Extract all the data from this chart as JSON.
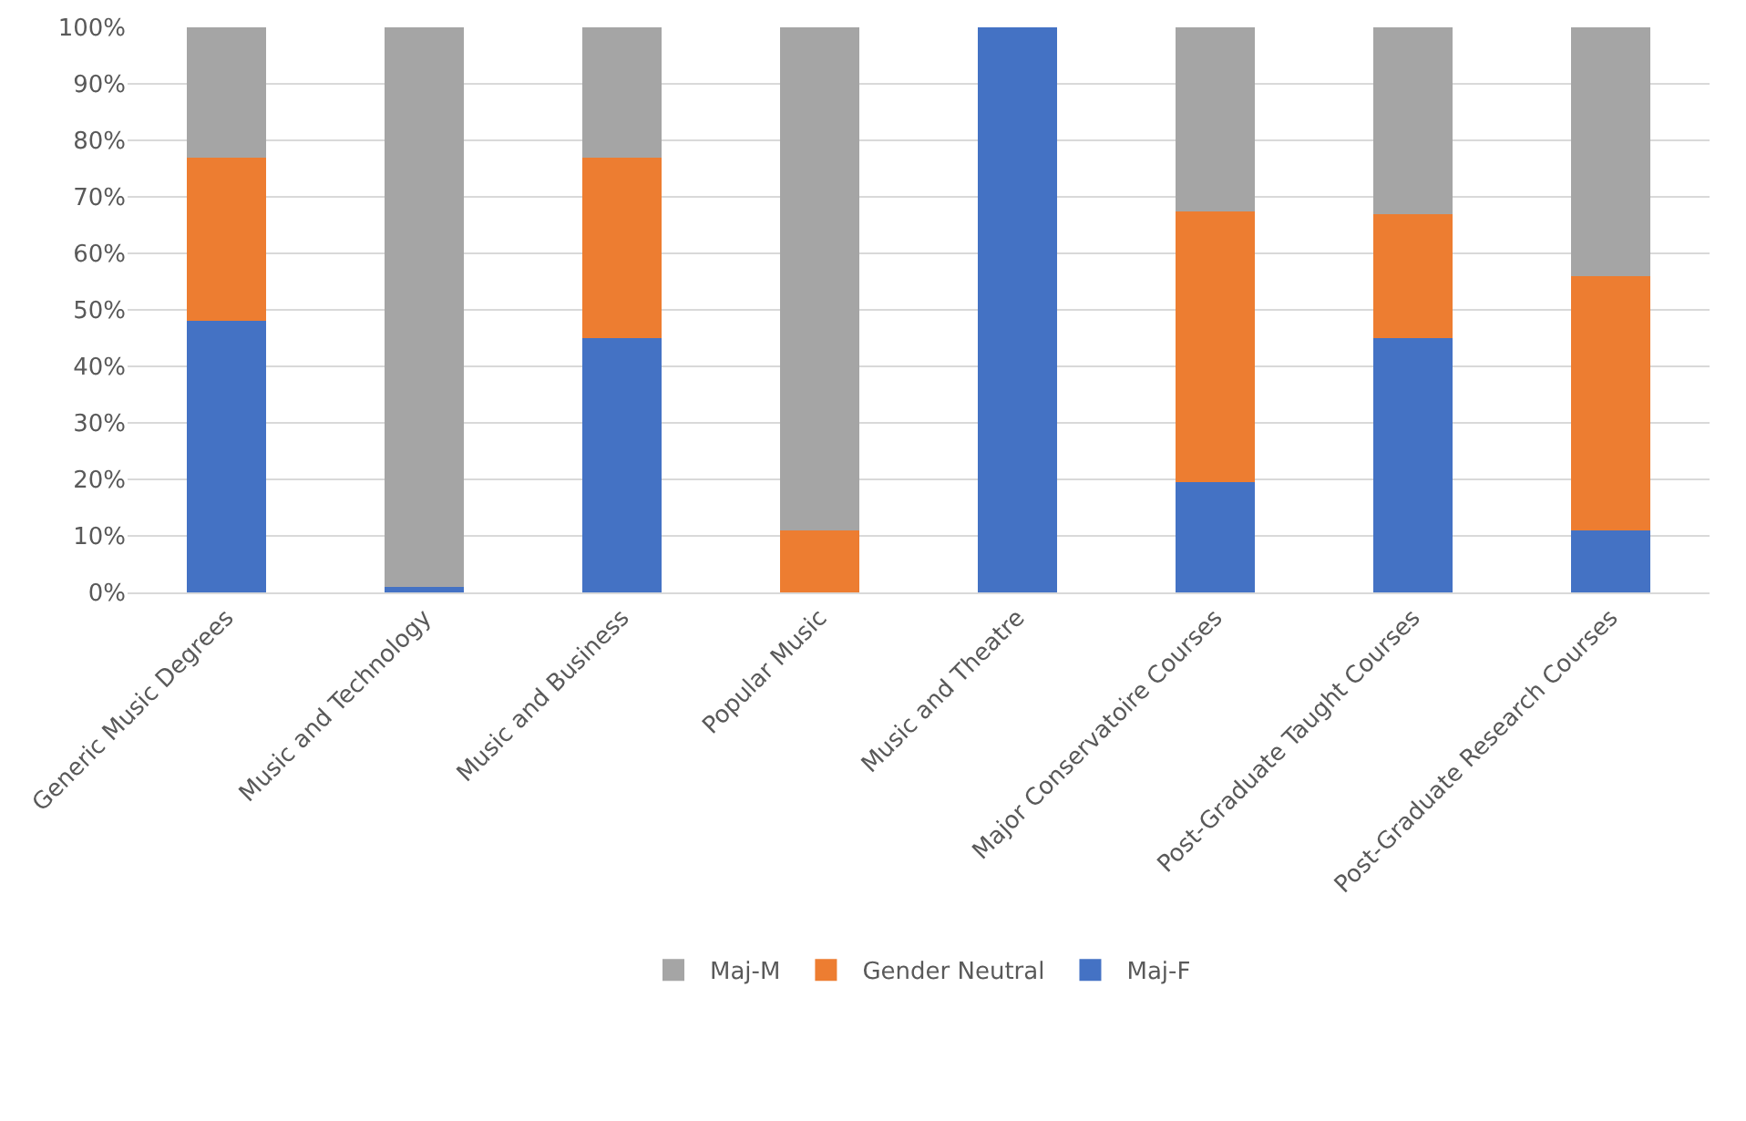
{
  "chart_data": {
    "type": "bar",
    "stacked": true,
    "categories": [
      "Generic Music Degrees",
      "Music and Technology",
      "Music and Business",
      "Popular Music",
      "Music and Theatre",
      "Major Conservatoire Courses",
      "Post-Graduate Taught Courses",
      "Post-Graduate Research Courses"
    ],
    "series": [
      {
        "name": "Maj-F",
        "color": "#4472c4",
        "values": [
          48,
          1,
          45,
          0,
          100,
          19.5,
          45,
          11
        ]
      },
      {
        "name": "Gender Neutral",
        "color": "#ed7d31",
        "values": [
          29,
          0,
          32,
          11,
          0,
          48,
          22,
          45
        ]
      },
      {
        "name": "Maj-M",
        "color": "#a5a5a5",
        "values": [
          23,
          99,
          23,
          89,
          0,
          32.5,
          33,
          44
        ]
      }
    ],
    "ylim": [
      0,
      100
    ],
    "yticks": [
      {
        "value": 0,
        "label": "0%"
      },
      {
        "value": 10,
        "label": "10%"
      },
      {
        "value": 20,
        "label": "20%"
      },
      {
        "value": 30,
        "label": "30%"
      },
      {
        "value": 40,
        "label": "40%"
      },
      {
        "value": 50,
        "label": "50%"
      },
      {
        "value": 60,
        "label": "60%"
      },
      {
        "value": 70,
        "label": "70%"
      },
      {
        "value": 80,
        "label": "80%"
      },
      {
        "value": 90,
        "label": "90%"
      },
      {
        "value": 100,
        "label": "100%"
      }
    ],
    "grid": "y",
    "legend": "bottom"
  }
}
